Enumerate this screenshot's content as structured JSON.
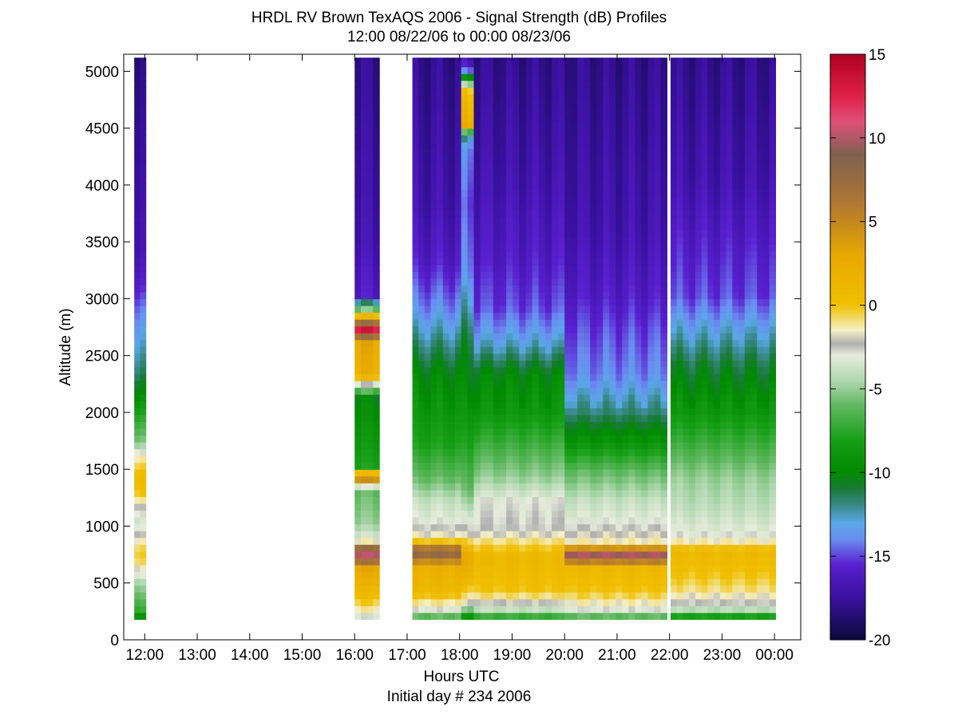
{
  "chart_data": {
    "type": "heatmap",
    "title": "HRDL RV Brown TexAQS 2006 - Signal Strength (dB) Profiles",
    "subtitle": "12:00 08/22/06 to 00:00 08/23/06",
    "xlabel": "Hours UTC",
    "xlabel2": "Initial day # 234  2006",
    "ylabel": "Altitude (m)",
    "xlim": [
      11.6,
      24.5
    ],
    "ylim": [
      0,
      5150
    ],
    "x_ticks": [
      {
        "value": 12,
        "label": "12:00"
      },
      {
        "value": 13,
        "label": "13:00"
      },
      {
        "value": 14,
        "label": "14:00"
      },
      {
        "value": 15,
        "label": "15:00"
      },
      {
        "value": 16,
        "label": "16:00"
      },
      {
        "value": 17,
        "label": "17:00"
      },
      {
        "value": 18,
        "label": "18:00"
      },
      {
        "value": 19,
        "label": "19:00"
      },
      {
        "value": 20,
        "label": "20:00"
      },
      {
        "value": 21,
        "label": "21:00"
      },
      {
        "value": 22,
        "label": "22:00"
      },
      {
        "value": 23,
        "label": "23:00"
      },
      {
        "value": 24,
        "label": "00:00"
      }
    ],
    "y_ticks": [
      {
        "value": 0,
        "label": "0"
      },
      {
        "value": 500,
        "label": "500"
      },
      {
        "value": 1000,
        "label": "1000"
      },
      {
        "value": 1500,
        "label": "1500"
      },
      {
        "value": 2000,
        "label": "2000"
      },
      {
        "value": 2500,
        "label": "2500"
      },
      {
        "value": 3000,
        "label": "3000"
      },
      {
        "value": 3500,
        "label": "3500"
      },
      {
        "value": 4000,
        "label": "4000"
      },
      {
        "value": 4500,
        "label": "4500"
      },
      {
        "value": 5000,
        "label": "5000"
      }
    ],
    "colorbar": {
      "range": [
        -20,
        15
      ],
      "ticks": [
        {
          "value": -20,
          "label": "-20"
        },
        {
          "value": -15,
          "label": "-15"
        },
        {
          "value": -10,
          "label": "-10"
        },
        {
          "value": -5,
          "label": "-5"
        },
        {
          "value": 0,
          "label": "0"
        },
        {
          "value": 5,
          "label": "5"
        },
        {
          "value": 10,
          "label": "10"
        },
        {
          "value": 15,
          "label": "15"
        }
      ],
      "stops": [
        {
          "value": -20,
          "color": "#0a0a3a"
        },
        {
          "value": -17.5,
          "color": "#3a10a0"
        },
        {
          "value": -15.5,
          "color": "#5a20d0"
        },
        {
          "value": -14,
          "color": "#6a8cf0"
        },
        {
          "value": -13,
          "color": "#5aa8e8"
        },
        {
          "value": -12,
          "color": "#3a8a8a"
        },
        {
          "value": -11,
          "color": "#1a7a3a"
        },
        {
          "value": -10,
          "color": "#008a00"
        },
        {
          "value": -8,
          "color": "#18a018"
        },
        {
          "value": -6,
          "color": "#60b860"
        },
        {
          "value": -4.5,
          "color": "#b0d8b0"
        },
        {
          "value": -3,
          "color": "#e8ecdc"
        },
        {
          "value": -2.3,
          "color": "#b0b0b0"
        },
        {
          "value": -1.5,
          "color": "#f4f0c8"
        },
        {
          "value": 0,
          "color": "#f0c000"
        },
        {
          "value": 3,
          "color": "#e8a800"
        },
        {
          "value": 6,
          "color": "#b07830"
        },
        {
          "value": 9,
          "color": "#806050"
        },
        {
          "value": 11,
          "color": "#e0507a"
        },
        {
          "value": 12.5,
          "color": "#e02048"
        },
        {
          "value": 15,
          "color": "#b00020"
        }
      ]
    },
    "gate_spacing_m": 60,
    "profiles": [
      {
        "start": 11.8,
        "end": 12.02,
        "top": 5120,
        "bottom": 180,
        "layers": [
          [
            180,
            -9
          ],
          [
            240,
            -7
          ],
          [
            320,
            -6
          ],
          [
            420,
            -5
          ],
          [
            500,
            -4
          ],
          [
            560,
            -2.5
          ],
          [
            620,
            -1
          ],
          [
            700,
            0
          ],
          [
            780,
            -0.5
          ],
          [
            900,
            -2
          ],
          [
            1000,
            -3.5
          ],
          [
            1150,
            -2
          ],
          [
            1250,
            0
          ],
          [
            1400,
            1
          ],
          [
            1560,
            -1
          ],
          [
            1700,
            -5
          ],
          [
            1900,
            -7
          ],
          [
            2100,
            -9
          ],
          [
            2300,
            -11
          ],
          [
            2500,
            -12
          ],
          [
            2700,
            -13
          ],
          [
            2900,
            -14
          ],
          [
            3100,
            -15.5
          ],
          [
            3400,
            -16.5
          ],
          [
            4000,
            -17
          ],
          [
            5120,
            -18
          ]
        ]
      },
      {
        "start": 16.0,
        "end": 16.47,
        "top": 5120,
        "bottom": 180,
        "layers": [
          [
            180,
            -3
          ],
          [
            250,
            -1
          ],
          [
            400,
            1
          ],
          [
            600,
            3
          ],
          [
            750,
            12
          ],
          [
            850,
            -3
          ],
          [
            1000,
            -5
          ],
          [
            1300,
            -6
          ],
          [
            1400,
            7
          ],
          [
            1500,
            -8
          ],
          [
            1800,
            -9
          ],
          [
            2100,
            -10
          ],
          [
            2300,
            2
          ],
          [
            2600,
            3
          ],
          [
            2700,
            13
          ],
          [
            2800,
            3
          ],
          [
            2950,
            -13
          ],
          [
            3000,
            -16
          ],
          [
            3500,
            -17
          ],
          [
            5120,
            -18
          ]
        ]
      },
      {
        "start": 17.1,
        "end": 18.03,
        "top": 5120,
        "bottom": 180,
        "layers": [
          [
            180,
            -6
          ],
          [
            260,
            -2
          ],
          [
            400,
            1
          ],
          [
            600,
            2
          ],
          [
            750,
            9
          ],
          [
            850,
            -1
          ],
          [
            1000,
            -3
          ],
          [
            1200,
            -4
          ],
          [
            1400,
            -6
          ],
          [
            1700,
            -8
          ],
          [
            2000,
            -9
          ],
          [
            2300,
            -10
          ],
          [
            2600,
            -12
          ],
          [
            2900,
            -14
          ],
          [
            3300,
            -16
          ],
          [
            3800,
            -17
          ],
          [
            5120,
            -18
          ]
        ]
      },
      {
        "start": 18.03,
        "end": 18.27,
        "top": 5120,
        "bottom": 180,
        "layers": [
          [
            180,
            -9
          ],
          [
            300,
            -2
          ],
          [
            500,
            1
          ],
          [
            700,
            3
          ],
          [
            900,
            -2
          ],
          [
            1100,
            -4
          ],
          [
            1300,
            -6
          ],
          [
            1700,
            -8
          ],
          [
            2200,
            -10
          ],
          [
            2600,
            -11
          ],
          [
            3200,
            -14
          ],
          [
            3800,
            -15
          ],
          [
            4300,
            -14
          ],
          [
            4400,
            -12
          ],
          [
            4500,
            2
          ],
          [
            4800,
            0
          ],
          [
            5000,
            -16
          ],
          [
            5120,
            -17
          ]
        ]
      },
      {
        "start": 18.27,
        "end": 20.0,
        "top": 5120,
        "bottom": 180,
        "layers": [
          [
            180,
            -7
          ],
          [
            260,
            -3
          ],
          [
            400,
            0
          ],
          [
            700,
            1
          ],
          [
            950,
            -2.5
          ],
          [
            1200,
            -3
          ],
          [
            1400,
            -5
          ],
          [
            1700,
            -7
          ],
          [
            2000,
            -9
          ],
          [
            2300,
            -10
          ],
          [
            2600,
            -13
          ],
          [
            2900,
            -15
          ],
          [
            3300,
            -16
          ],
          [
            4000,
            -17
          ],
          [
            5120,
            -18
          ]
        ]
      },
      {
        "start": 20.0,
        "end": 21.95,
        "top": 5120,
        "bottom": 180,
        "layers": [
          [
            180,
            -6
          ],
          [
            260,
            -2
          ],
          [
            400,
            0
          ],
          [
            600,
            1
          ],
          [
            750,
            12
          ],
          [
            800,
            -1
          ],
          [
            1000,
            -3
          ],
          [
            1200,
            -4
          ],
          [
            1450,
            -6
          ],
          [
            1700,
            -9
          ],
          [
            2000,
            -12
          ],
          [
            2300,
            -14
          ],
          [
            2700,
            -15
          ],
          [
            3000,
            -16
          ],
          [
            3600,
            -17
          ],
          [
            5120,
            -18
          ]
        ]
      },
      {
        "start": 22.02,
        "end": 24.02,
        "top": 5120,
        "bottom": 180,
        "layers": [
          [
            180,
            -8
          ],
          [
            260,
            -3
          ],
          [
            400,
            -1
          ],
          [
            550,
            0
          ],
          [
            750,
            1
          ],
          [
            900,
            -3
          ],
          [
            1100,
            -4
          ],
          [
            1400,
            -5
          ],
          [
            1700,
            -7
          ],
          [
            2000,
            -9
          ],
          [
            2400,
            -11
          ],
          [
            2700,
            -13
          ],
          [
            3000,
            -15
          ],
          [
            3500,
            -16
          ],
          [
            4000,
            -17
          ],
          [
            5120,
            -18
          ]
        ]
      }
    ]
  }
}
